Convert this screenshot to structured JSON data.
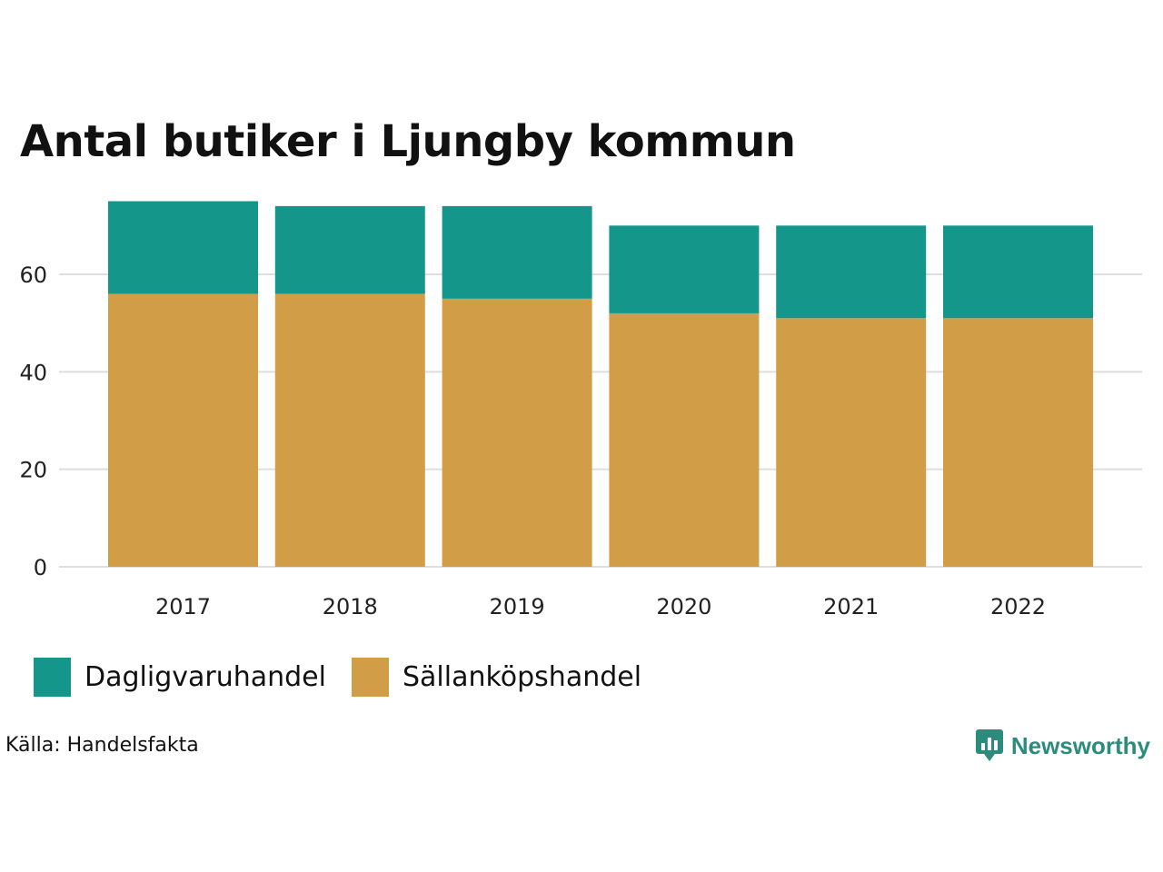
{
  "chart_data": {
    "type": "bar",
    "stacked": true,
    "title": "Antal butiker i Ljungby kommun",
    "categories": [
      "2017",
      "2018",
      "2019",
      "2020",
      "2021",
      "2022"
    ],
    "series": [
      {
        "name": "Sällanköpshandel",
        "color": "#d19e47",
        "values": [
          56,
          56,
          55,
          52,
          51,
          51
        ]
      },
      {
        "name": "Dagligvaruhandel",
        "color": "#14978a",
        "values": [
          19,
          18,
          19,
          18,
          19,
          19
        ]
      }
    ],
    "y_ticks": [
      0,
      20,
      40,
      60
    ],
    "ylim": [
      0,
      75
    ],
    "xlabel": "",
    "ylabel": "",
    "grid": true,
    "legend_position": "bottom-left"
  },
  "legend": [
    {
      "label": "Dagligvaruhandel",
      "color": "#14978a"
    },
    {
      "label": "Sällanköpshandel",
      "color": "#d19e47"
    }
  ],
  "source": "Källa: Handelsfakta",
  "brand": {
    "name": "Newsworthy",
    "color": "#2b8c7e",
    "icon": "bar-chart-speech-bubble-icon"
  }
}
